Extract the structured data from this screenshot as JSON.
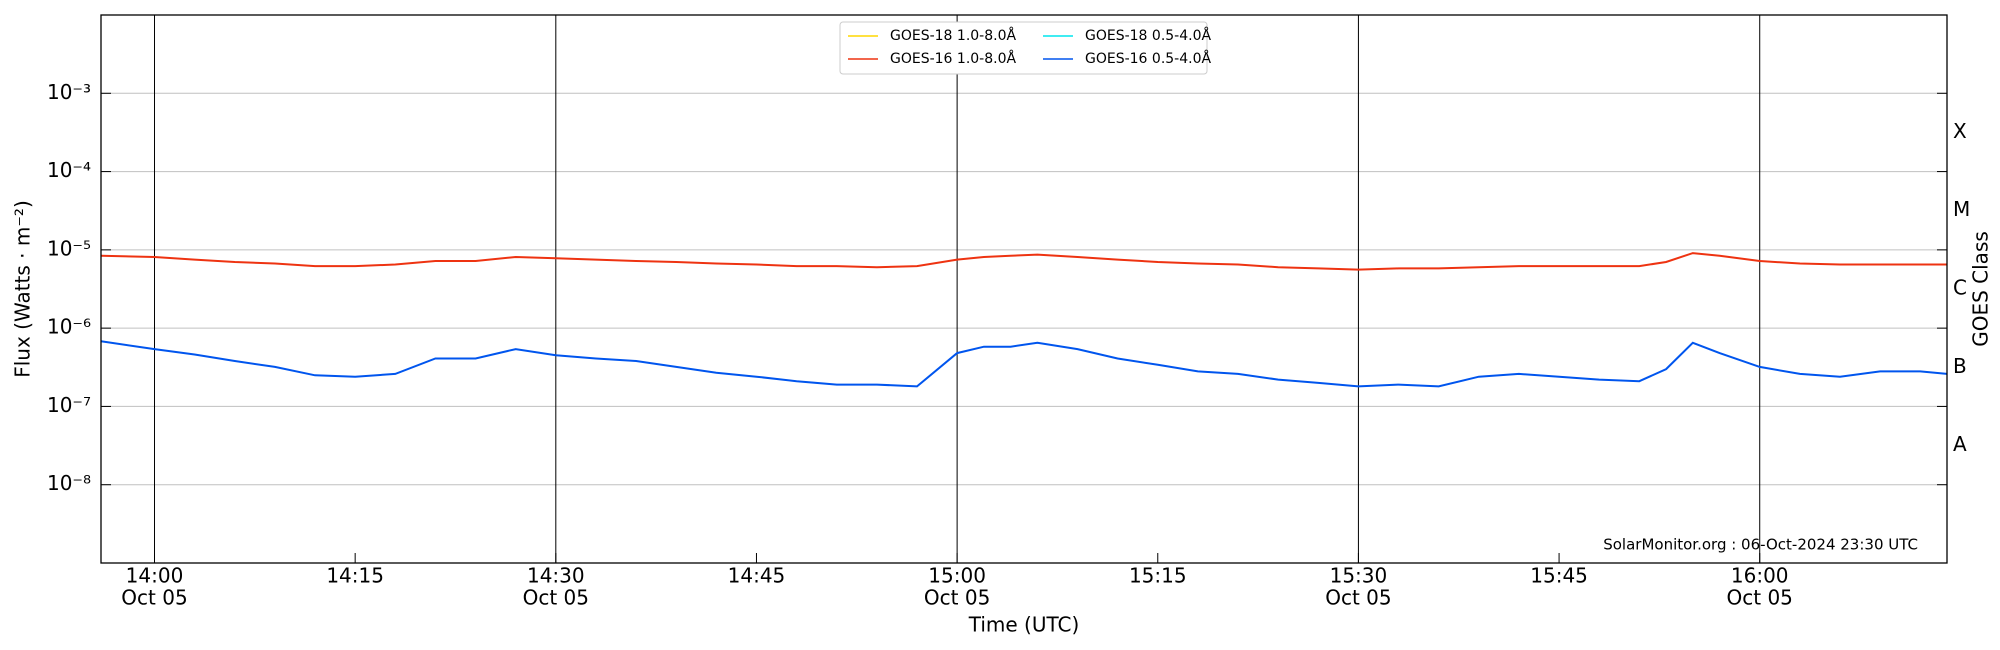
{
  "chart_data": {
    "type": "line",
    "xlabel": "Time (UTC)",
    "ylabel": "Flux (Watts · m⁻²)",
    "y2label": "GOES Class",
    "y2_classes": [
      "A",
      "B",
      "C",
      "M",
      "X"
    ],
    "annotation": "SolarMonitor.org : 06-Oct-2024 23:30 UTC",
    "log_y": true,
    "ylim": [
      1e-09,
      0.01
    ],
    "yticks": [
      {
        "value": 1e-08,
        "label": "10⁻⁸"
      },
      {
        "value": 1e-07,
        "label": "10⁻⁷"
      },
      {
        "value": 1e-06,
        "label": "10⁻⁶"
      },
      {
        "value": 1e-05,
        "label": "10⁻⁵"
      },
      {
        "value": 0.0001,
        "label": "10⁻⁴"
      },
      {
        "value": 0.001,
        "label": "10⁻³"
      }
    ],
    "ygrid_color": "#c0c0c0",
    "xgrid_color": "#000000",
    "legend": "upper center",
    "xlim": [
      "13:56",
      "16:14"
    ],
    "xticks": [
      {
        "value": "14:00",
        "label": "14:00",
        "date": "Oct 05"
      },
      {
        "value": "14:15",
        "label": "14:15"
      },
      {
        "value": "14:30",
        "label": "14:30",
        "date": "Oct 05"
      },
      {
        "value": "14:45",
        "label": "14:45"
      },
      {
        "value": "15:00",
        "label": "15:00",
        "date": "Oct 05"
      },
      {
        "value": "15:15",
        "label": "15:15"
      },
      {
        "value": "15:30",
        "label": "15:30",
        "date": "Oct 05"
      },
      {
        "value": "15:45",
        "label": "15:45"
      },
      {
        "value": "16:00",
        "label": "16:00",
        "date": "Oct 05"
      }
    ],
    "x": [
      "13:56",
      "14:00",
      "14:03",
      "14:06",
      "14:09",
      "14:12",
      "14:15",
      "14:18",
      "14:21",
      "14:24",
      "14:27",
      "14:30",
      "14:33",
      "14:36",
      "14:39",
      "14:42",
      "14:45",
      "14:48",
      "14:51",
      "14:54",
      "14:57",
      "15:00",
      "15:02",
      "15:04",
      "15:06",
      "15:09",
      "15:12",
      "15:15",
      "15:18",
      "15:21",
      "15:24",
      "15:27",
      "15:30",
      "15:33",
      "15:36",
      "15:39",
      "15:42",
      "15:45",
      "15:48",
      "15:51",
      "15:53",
      "15:55",
      "15:57",
      "16:00",
      "16:03",
      "16:06",
      "16:09",
      "16:12",
      "16:14"
    ],
    "series": [
      {
        "name": "GOES-18 1.0-8.0Å",
        "color": "#ffd700",
        "values": [
          null,
          null,
          null,
          null,
          null,
          null,
          null,
          null,
          null,
          null,
          null,
          null,
          null,
          null,
          null,
          null,
          null,
          null,
          null,
          null,
          null,
          null,
          null,
          null,
          null,
          null,
          null,
          null,
          null,
          null,
          null,
          null,
          null,
          null,
          null,
          null,
          null,
          null,
          null,
          null,
          null,
          null,
          null,
          null,
          null,
          null,
          null,
          null,
          null
        ]
      },
      {
        "name": "GOES-16 1.0-8.0Å",
        "color": "#ee3311",
        "values": [
          8.4e-06,
          8.1e-06,
          7.5e-06,
          7e-06,
          6.7e-06,
          6.2e-06,
          6.2e-06,
          6.5e-06,
          7.2e-06,
          7.2e-06,
          8.1e-06,
          7.8e-06,
          7.5e-06,
          7.2e-06,
          7e-06,
          6.7e-06,
          6.5e-06,
          6.2e-06,
          6.2e-06,
          6e-06,
          6.2e-06,
          7.5e-06,
          8.1e-06,
          8.4e-06,
          8.7e-06,
          8.1e-06,
          7.5e-06,
          7e-06,
          6.7e-06,
          6.5e-06,
          6e-06,
          5.8e-06,
          5.6e-06,
          5.8e-06,
          5.8e-06,
          6e-06,
          6.2e-06,
          6.2e-06,
          6.2e-06,
          6.2e-06,
          7e-06,
          9.1e-06,
          8.4e-06,
          7.2e-06,
          6.7e-06,
          6.5e-06,
          6.5e-06,
          6.5e-06,
          6.5e-06
        ]
      },
      {
        "name": "GOES-18 0.5-4.0Å",
        "color": "#00e5ee",
        "values": [
          null,
          null,
          null,
          null,
          null,
          null,
          null,
          null,
          null,
          null,
          null,
          null,
          null,
          null,
          null,
          null,
          null,
          null,
          null,
          null,
          null,
          null,
          null,
          null,
          null,
          null,
          null,
          null,
          null,
          null,
          null,
          null,
          null,
          null,
          null,
          null,
          null,
          null,
          null,
          null,
          null,
          null,
          null,
          null,
          null,
          null,
          null,
          null,
          null
        ]
      },
      {
        "name": "GOES-16 0.5-4.0Å",
        "color": "#0055ee",
        "values": [
          6.8e-07,
          5.4e-07,
          4.6e-07,
          3.8e-07,
          3.2e-07,
          2.5e-07,
          2.4e-07,
          2.6e-07,
          4.1e-07,
          4.1e-07,
          5.4e-07,
          4.5e-07,
          4.1e-07,
          3.8e-07,
          3.2e-07,
          2.7e-07,
          2.4e-07,
          2.1e-07,
          1.9e-07,
          1.9e-07,
          1.8e-07,
          4.8e-07,
          5.8e-07,
          5.8e-07,
          6.5e-07,
          5.4e-07,
          4.1e-07,
          3.4e-07,
          2.8e-07,
          2.6e-07,
          2.2e-07,
          2e-07,
          1.8e-07,
          1.9e-07,
          1.8e-07,
          2.4e-07,
          2.6e-07,
          2.4e-07,
          2.2e-07,
          2.1e-07,
          3e-07,
          6.5e-07,
          4.8e-07,
          3.2e-07,
          2.6e-07,
          2.4e-07,
          2.8e-07,
          2.8e-07,
          2.6e-07
        ]
      }
    ]
  }
}
